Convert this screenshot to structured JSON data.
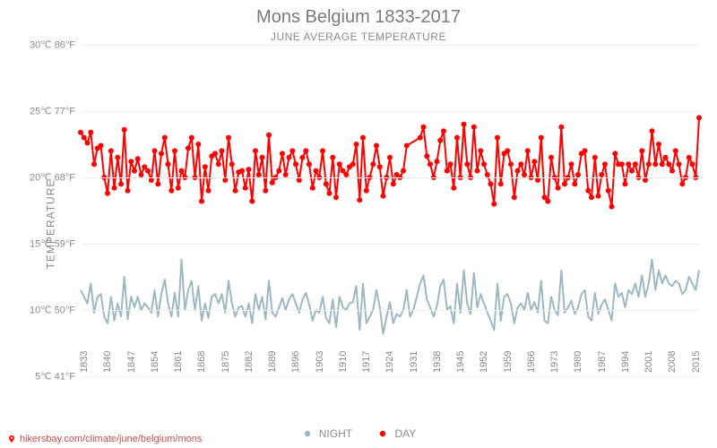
{
  "title": "Mons Belgium 1833-2017",
  "subtitle": "JUNE AVERAGE TEMPERATURE",
  "ylabel": "TEMPERATURE",
  "footer_text": "hikersbay.com/climate/june/belgium/mons",
  "legend": {
    "night": "NIGHT",
    "day": "DAY"
  },
  "chart": {
    "type": "line",
    "background_color": "#ffffff",
    "grid_color": "#eeeeee",
    "text_color": "#8a8a8a",
    "title_fontsize": 20,
    "subtitle_fontsize": 12,
    "label_fontsize": 12,
    "tick_fontsize": 11,
    "line_width": 2,
    "marker_size": 3,
    "ylim_c": [
      5,
      30
    ],
    "y_ticks": [
      {
        "c": "5℃",
        "f": "41°F",
        "val": 5
      },
      {
        "c": "10℃",
        "f": "50°F",
        "val": 10
      },
      {
        "c": "15℃",
        "f": "59°F",
        "val": 15
      },
      {
        "c": "20℃",
        "f": "68°F",
        "val": 20
      },
      {
        "c": "25℃",
        "f": "77°F",
        "val": 25
      },
      {
        "c": "30℃",
        "f": "86°F",
        "val": 30
      }
    ],
    "x_ticks": [
      1833,
      1840,
      1847,
      1854,
      1861,
      1868,
      1875,
      1882,
      1889,
      1896,
      1903,
      1910,
      1917,
      1924,
      1931,
      1938,
      1945,
      1952,
      1959,
      1966,
      1973,
      1980,
      1987,
      1994,
      2001,
      2008,
      2015
    ],
    "x_range": [
      1833,
      2017
    ],
    "series": {
      "day": {
        "label": "DAY",
        "color": "#ff0000",
        "years": [
          1833,
          1834,
          1835,
          1836,
          1837,
          1838,
          1839,
          1840,
          1841,
          1842,
          1843,
          1844,
          1845,
          1846,
          1847,
          1848,
          1849,
          1850,
          1851,
          1852,
          1853,
          1854,
          1855,
          1856,
          1857,
          1858,
          1859,
          1860,
          1861,
          1862,
          1863,
          1864,
          1865,
          1866,
          1867,
          1868,
          1869,
          1870,
          1871,
          1872,
          1873,
          1874,
          1875,
          1876,
          1877,
          1878,
          1879,
          1880,
          1881,
          1882,
          1883,
          1884,
          1885,
          1886,
          1887,
          1888,
          1889,
          1890,
          1891,
          1892,
          1893,
          1894,
          1895,
          1896,
          1897,
          1898,
          1899,
          1900,
          1901,
          1902,
          1903,
          1904,
          1905,
          1906,
          1907,
          1908,
          1909,
          1910,
          1911,
          1912,
          1913,
          1914,
          1915,
          1916,
          1917,
          1918,
          1919,
          1920,
          1921,
          1922,
          1923,
          1924,
          1925,
          1926,
          1927,
          1928,
          1929,
          1930,
          1934,
          1935,
          1936,
          1937,
          1938,
          1939,
          1940,
          1941,
          1942,
          1943,
          1944,
          1945,
          1946,
          1947,
          1948,
          1949,
          1950,
          1951,
          1952,
          1953,
          1954,
          1955,
          1956,
          1957,
          1958,
          1959,
          1960,
          1961,
          1962,
          1963,
          1964,
          1965,
          1966,
          1967,
          1968,
          1969,
          1970,
          1971,
          1972,
          1973,
          1974,
          1975,
          1976,
          1977,
          1978,
          1979,
          1980,
          1981,
          1982,
          1983,
          1984,
          1985,
          1986,
          1987,
          1988,
          1989,
          1990,
          1991,
          1992,
          1993,
          1994,
          1995,
          1996,
          1997,
          1998,
          1999,
          2000,
          2001,
          2002,
          2003,
          2004,
          2005,
          2006,
          2007,
          2008,
          2009,
          2010,
          2011,
          2012,
          2013,
          2014,
          2015,
          2016,
          2017
        ],
        "values": [
          23.4,
          23.0,
          22.6,
          23.4,
          21.0,
          22.2,
          22.4,
          20.0,
          18.8,
          22.0,
          19.2,
          21.5,
          19.5,
          23.6,
          19.0,
          21.2,
          20.5,
          21.4,
          20.2,
          20.8,
          20.5,
          19.8,
          22.0,
          19.5,
          21.8,
          23.0,
          21.0,
          19.0,
          22.0,
          19.2,
          20.5,
          20.0,
          22.2,
          23.0,
          20.0,
          22.5,
          18.2,
          20.8,
          19.0,
          21.6,
          21.8,
          21.0,
          22.0,
          19.8,
          23.0,
          21.0,
          19.0,
          20.4,
          20.5,
          19.2,
          20.6,
          18.2,
          22.0,
          20.2,
          21.5,
          19.0,
          23.2,
          19.6,
          20.0,
          20.5,
          21.8,
          20.2,
          21.5,
          22.0,
          21.0,
          19.8,
          21.5,
          22.0,
          21.0,
          19.2,
          20.5,
          20.0,
          22.0,
          19.5,
          18.8,
          21.5,
          18.5,
          21.0,
          20.5,
          20.2,
          20.8,
          21.0,
          22.5,
          18.3,
          23.0,
          19.0,
          20.0,
          21.0,
          22.4,
          20.8,
          18.6,
          20.0,
          21.5,
          19.5,
          20.2,
          20.0,
          20.5,
          22.4,
          23.0,
          23.8,
          21.6,
          21.0,
          20.0,
          21.2,
          22.8,
          23.5,
          20.5,
          21.0,
          19.2,
          23.0,
          20.0,
          24.0,
          21.0,
          20.0,
          23.8,
          20.5,
          22.0,
          21.0,
          20.2,
          19.5,
          18.0,
          23.0,
          19.5,
          21.8,
          22.0,
          21.0,
          18.5,
          20.5,
          21.0,
          20.2,
          22.0,
          20.0,
          21.2,
          19.8,
          23.0,
          18.5,
          18.2,
          21.5,
          20.0,
          19.2,
          23.8,
          19.5,
          20.0,
          21.0,
          19.5,
          20.2,
          21.8,
          22.0,
          19.0,
          18.5,
          21.5,
          18.6,
          20.2,
          21.0,
          19.0,
          17.8,
          21.8,
          21.0,
          21.0,
          19.5,
          21.0,
          20.5,
          21.0,
          20.0,
          22.0,
          19.8,
          21.0,
          23.5,
          21.0,
          22.5,
          21.0,
          21.5,
          21.0,
          20.5,
          22.0,
          21.0,
          19.5,
          20.0,
          21.5,
          21.0,
          20.0,
          24.5
        ]
      },
      "night": {
        "label": "NIGHT",
        "color": "#9db8c2",
        "years": [
          1833,
          1834,
          1835,
          1836,
          1837,
          1838,
          1839,
          1840,
          1841,
          1842,
          1843,
          1844,
          1845,
          1846,
          1847,
          1848,
          1849,
          1850,
          1851,
          1852,
          1853,
          1854,
          1855,
          1856,
          1857,
          1858,
          1859,
          1860,
          1861,
          1862,
          1863,
          1864,
          1865,
          1866,
          1867,
          1868,
          1869,
          1870,
          1871,
          1872,
          1873,
          1874,
          1875,
          1876,
          1877,
          1878,
          1879,
          1880,
          1881,
          1882,
          1883,
          1884,
          1885,
          1886,
          1887,
          1888,
          1889,
          1890,
          1891,
          1892,
          1893,
          1894,
          1895,
          1896,
          1897,
          1898,
          1899,
          1900,
          1901,
          1902,
          1903,
          1904,
          1905,
          1906,
          1907,
          1908,
          1909,
          1910,
          1911,
          1912,
          1913,
          1914,
          1915,
          1916,
          1917,
          1918,
          1919,
          1920,
          1921,
          1922,
          1923,
          1924,
          1925,
          1926,
          1927,
          1928,
          1929,
          1930,
          1931,
          1932,
          1933,
          1934,
          1935,
          1936,
          1937,
          1938,
          1939,
          1940,
          1941,
          1942,
          1943,
          1944,
          1945,
          1946,
          1947,
          1948,
          1949,
          1950,
          1951,
          1952,
          1953,
          1954,
          1955,
          1956,
          1957,
          1958,
          1959,
          1960,
          1961,
          1962,
          1963,
          1964,
          1965,
          1966,
          1967,
          1968,
          1969,
          1970,
          1971,
          1972,
          1973,
          1974,
          1975,
          1976,
          1977,
          1978,
          1979,
          1980,
          1981,
          1982,
          1983,
          1984,
          1985,
          1986,
          1987,
          1988,
          1989,
          1990,
          1991,
          1992,
          1993,
          1994,
          1995,
          1996,
          1997,
          1998,
          1999,
          2000,
          2001,
          2002,
          2003,
          2004,
          2005,
          2006,
          2007,
          2008,
          2009,
          2010,
          2011,
          2012,
          2013,
          2014,
          2015,
          2016,
          2017
        ],
        "values": [
          11.5,
          11.0,
          10.5,
          12.0,
          9.8,
          11.0,
          11.2,
          9.5,
          9.0,
          11.0,
          9.2,
          10.5,
          9.5,
          12.5,
          9.3,
          11.0,
          10.2,
          11.0,
          10.0,
          10.5,
          10.2,
          9.8,
          11.5,
          9.5,
          11.2,
          12.3,
          10.5,
          9.5,
          11.3,
          9.5,
          13.8,
          10.0,
          11.5,
          12.2,
          10.0,
          11.8,
          9.2,
          10.5,
          9.4,
          11.0,
          11.2,
          10.5,
          11.2,
          9.8,
          12.2,
          10.5,
          9.5,
          10.2,
          10.3,
          9.5,
          10.5,
          9.0,
          11.2,
          10.0,
          11.0,
          9.3,
          12.2,
          9.8,
          9.5,
          10.2,
          10.9,
          10.0,
          10.8,
          11.2,
          10.5,
          9.8,
          10.8,
          11.3,
          10.4,
          9.2,
          10.0,
          9.8,
          11.0,
          9.4,
          9.0,
          10.8,
          8.7,
          11.0,
          10.2,
          10.0,
          10.5,
          10.6,
          11.8,
          8.5,
          12.0,
          9.0,
          9.5,
          10.0,
          11.5,
          10.2,
          8.2,
          9.5,
          10.6,
          9.0,
          9.7,
          9.5,
          10.0,
          11.5,
          9.5,
          10.0,
          11.0,
          12.0,
          12.6,
          10.8,
          10.2,
          9.5,
          10.3,
          11.8,
          12.3,
          10.0,
          10.3,
          9.0,
          12.0,
          9.8,
          13.0,
          10.5,
          9.7,
          12.8,
          10.2,
          11.2,
          10.5,
          9.8,
          9.2,
          8.5,
          12.0,
          9.2,
          11.0,
          11.2,
          10.5,
          9.0,
          10.2,
          10.5,
          10.0,
          11.3,
          10.0,
          10.6,
          9.8,
          12.2,
          9.2,
          9.0,
          11.0,
          10.0,
          9.6,
          13.0,
          9.8,
          10.2,
          10.7,
          9.7,
          10.2,
          11.2,
          11.5,
          9.5,
          9.2,
          11.3,
          9.7,
          10.4,
          10.8,
          10.0,
          9.2,
          12.0,
          11.0,
          11.3,
          10.2,
          11.5,
          11.2,
          12.0,
          11.0,
          12.6,
          11.0,
          12.0,
          13.8,
          11.5,
          13.0,
          12.0,
          12.6,
          12.0,
          11.8,
          12.2,
          12.0,
          11.2,
          11.5,
          12.5,
          12.0,
          11.5,
          13.0
        ]
      }
    }
  }
}
